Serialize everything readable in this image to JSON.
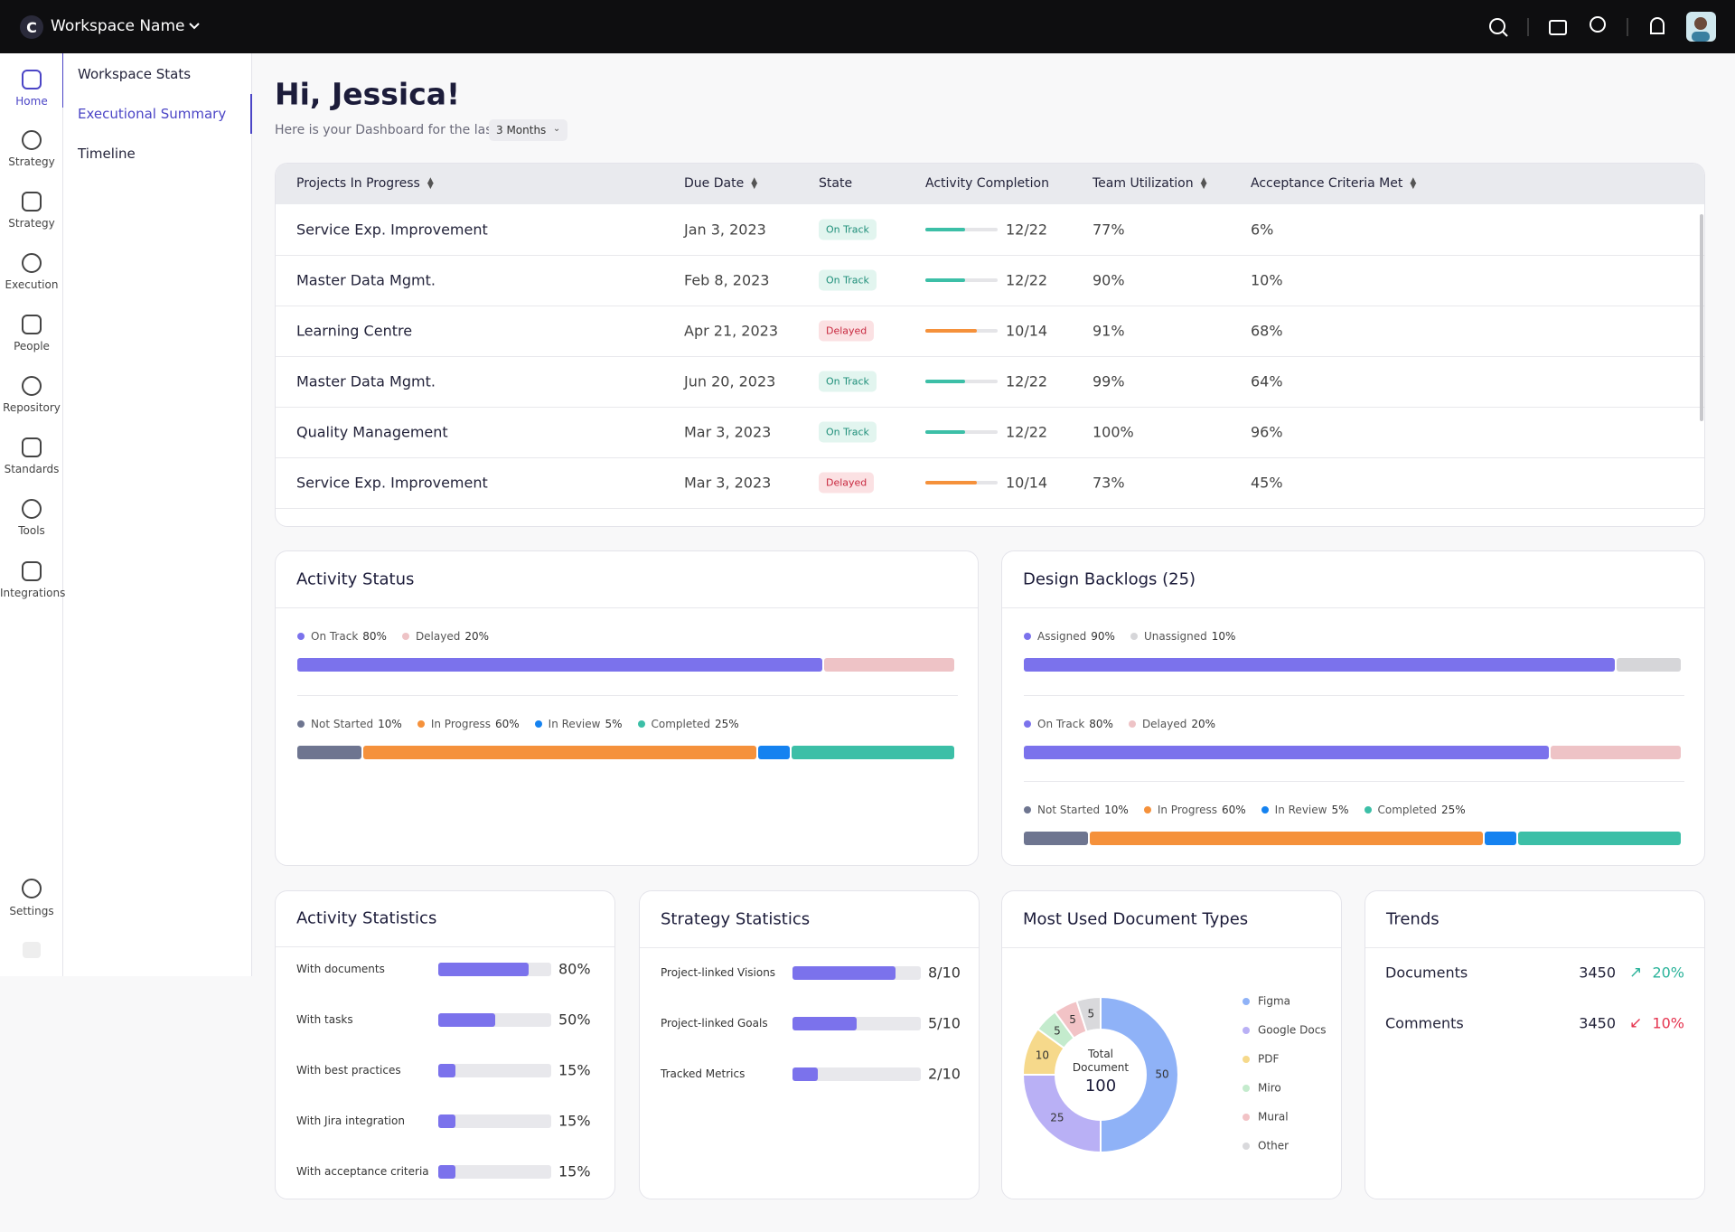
{
  "topbar": {
    "logo": "C",
    "workspace_name": "Workspace Name"
  },
  "nav": {
    "items": [
      "Home",
      "Strategy",
      "Strategy",
      "Execution",
      "People",
      "Repository",
      "Standards",
      "Tools",
      "Integrations"
    ],
    "settings": "Settings"
  },
  "submenu": {
    "items": [
      "Workspace Stats",
      "Executional Summary",
      "Timeline"
    ]
  },
  "header": {
    "greeting": "Hi, Jessica!",
    "subtitle": "Here is your Dashboard for the last",
    "period": "3 Months"
  },
  "projects_table": {
    "columns": [
      "Projects In Progress",
      "Due Date",
      "State",
      "Activity Completion",
      "Team Utilization",
      "Acceptance Criteria Met"
    ],
    "sortable": [
      true,
      true,
      false,
      false,
      true,
      true
    ],
    "rows": [
      {
        "project": "Service Exp. Improvement",
        "due_date": "Jan 3, 2023",
        "state": {
          "label": "On Track",
          "color": "#1f8f7a",
          "bg": "#e2f5ef"
        },
        "completion": {
          "label": "12/22",
          "done": 12,
          "total": 22,
          "color": "#3cbfa7"
        },
        "utilization": "77%",
        "acceptance": "6%"
      },
      {
        "project": "Master Data Mgmt.",
        "due_date": "Feb 8, 2023",
        "state": {
          "label": "On Track",
          "color": "#1f8f7a",
          "bg": "#e2f5ef"
        },
        "completion": {
          "label": "12/22",
          "done": 12,
          "total": 22,
          "color": "#3cbfa7"
        },
        "utilization": "90%",
        "acceptance": "10%"
      },
      {
        "project": "Learning Centre",
        "due_date": "Apr 21, 2023",
        "state": {
          "label": "Delayed",
          "color": "#c8283f",
          "bg": "#fbe1e3"
        },
        "completion": {
          "label": "10/14",
          "done": 10,
          "total": 14,
          "color": "#f5913b"
        },
        "utilization": "91%",
        "acceptance": "68%"
      },
      {
        "project": "Master Data Mgmt.",
        "due_date": "Jun 20, 2023",
        "state": {
          "label": "On Track",
          "color": "#1f8f7a",
          "bg": "#e2f5ef"
        },
        "completion": {
          "label": "12/22",
          "done": 12,
          "total": 22,
          "color": "#3cbfa7"
        },
        "utilization": "99%",
        "acceptance": "64%"
      },
      {
        "project": "Quality Management",
        "due_date": "Mar 3, 2023",
        "state": {
          "label": "On Track",
          "color": "#1f8f7a",
          "bg": "#e2f5ef"
        },
        "completion": {
          "label": "12/22",
          "done": 12,
          "total": 22,
          "color": "#3cbfa7"
        },
        "utilization": "100%",
        "acceptance": "96%"
      },
      {
        "project": "Service Exp. Improvement",
        "due_date": "Mar 3, 2023",
        "state": {
          "label": "Delayed",
          "color": "#c8283f",
          "bg": "#fbe1e3"
        },
        "completion": {
          "label": "10/14",
          "done": 10,
          "total": 14,
          "color": "#f5913b"
        },
        "utilization": "73%",
        "acceptance": "45%"
      }
    ]
  },
  "activity_status": {
    "title": "Activity Status",
    "bars": [
      {
        "series": [
          {
            "name": "On Track",
            "value": 80,
            "value_label": "80%",
            "color": "#7b72ec"
          },
          {
            "name": "Delayed",
            "value": 20,
            "value_label": "20%",
            "color": "#eec3c6"
          }
        ]
      },
      {
        "series": [
          {
            "name": "Not Started",
            "value": 10,
            "value_label": "10%",
            "color": "#6e7590"
          },
          {
            "name": "In Progress",
            "value": 60,
            "value_label": "60%",
            "color": "#f5913b"
          },
          {
            "name": "In Review",
            "value": 5,
            "value_label": "5%",
            "color": "#1582f0"
          },
          {
            "name": "Completed",
            "value": 25,
            "value_label": "25%",
            "color": "#3cbfa7"
          }
        ]
      }
    ]
  },
  "design_backlogs": {
    "title": "Design Backlogs (25)",
    "bars": [
      {
        "series": [
          {
            "name": "Assigned",
            "value": 90,
            "value_label": "90%",
            "color": "#7b72ec"
          },
          {
            "name": "Unassigned",
            "value": 10,
            "value_label": "10%",
            "color": "#d6d6d9"
          }
        ]
      },
      {
        "series": [
          {
            "name": "On Track",
            "value": 80,
            "value_label": "80%",
            "color": "#7b72ec"
          },
          {
            "name": "Delayed",
            "value": 20,
            "value_label": "20%",
            "color": "#eec3c6"
          }
        ]
      },
      {
        "series": [
          {
            "name": "Not Started",
            "value": 10,
            "value_label": "10%",
            "color": "#6e7590"
          },
          {
            "name": "In Progress",
            "value": 60,
            "value_label": "60%",
            "color": "#f5913b"
          },
          {
            "name": "In Review",
            "value": 5,
            "value_label": "5%",
            "color": "#1582f0"
          },
          {
            "name": "Completed",
            "value": 25,
            "value_label": "25%",
            "color": "#3cbfa7"
          }
        ]
      }
    ]
  },
  "activity_statistics": {
    "title": "Activity Statistics",
    "color": "#7b72ec",
    "xlim": [
      0,
      100
    ],
    "rows": [
      {
        "label": "With documents",
        "value": 80,
        "value_label": "80%"
      },
      {
        "label": "With tasks",
        "value": 50,
        "value_label": "50%"
      },
      {
        "label": "With best practices",
        "value": 15,
        "value_label": "15%"
      },
      {
        "label": "With Jira integration",
        "value": 15,
        "value_label": "15%"
      },
      {
        "label": "With acceptance criteria",
        "value": 15,
        "value_label": "15%"
      }
    ]
  },
  "strategy_statistics": {
    "title": "Strategy Statistics",
    "color": "#7b72ec",
    "rows": [
      {
        "label": "Project-linked Visions",
        "value": 8,
        "total": 10,
        "value_label": "8/10"
      },
      {
        "label": "Project-linked Goals",
        "value": 5,
        "total": 10,
        "value_label": "5/10"
      },
      {
        "label": "Tracked Metrics",
        "value": 2,
        "total": 10,
        "value_label": "2/10"
      }
    ]
  },
  "document_types": {
    "type": "pie",
    "title": "Most Used Document Types",
    "center_label": "Total Document",
    "total": 100,
    "series": [
      {
        "name": "Figma",
        "value": 50,
        "color": "#8fb2f7"
      },
      {
        "name": "Google Docs",
        "value": 25,
        "color": "#b9b0f5"
      },
      {
        "name": "PDF",
        "value": 10,
        "color": "#f6d98b"
      },
      {
        "name": "Miro",
        "value": 5,
        "color": "#c4ebcd"
      },
      {
        "name": "Mural",
        "value": 5,
        "color": "#f2c3c6"
      },
      {
        "name": "Other",
        "value": 5,
        "color": "#d9d9dc"
      }
    ]
  },
  "trends": {
    "title": "Trends",
    "rows": [
      {
        "label": "Documents",
        "count": 3450,
        "arrow": "↗",
        "change": "20%",
        "color": "#2bb39a"
      },
      {
        "label": "Comments",
        "count": 3450,
        "arrow": "↙",
        "change": "10%",
        "color": "#e5344f"
      }
    ]
  }
}
